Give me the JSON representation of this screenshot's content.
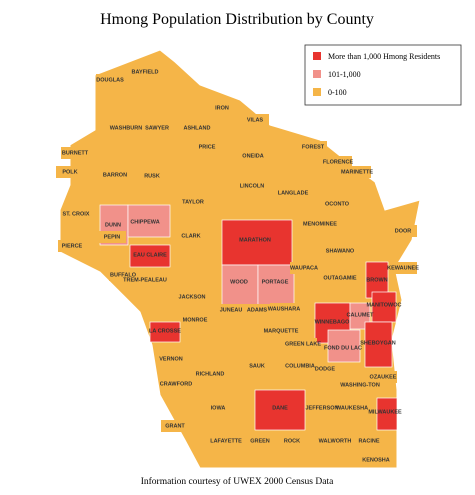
{
  "title": "Hmong Population Distribution by County",
  "legend": [
    {
      "label": "More than 1,000 Hmong Residents",
      "color": "#e8342f"
    },
    {
      "label": "101-1,000",
      "color": "#f1918a"
    },
    {
      "label": "0-100",
      "color": "#f5b548"
    }
  ],
  "counties": [
    {
      "name": "DOUGLAS",
      "color": "#f5b548"
    },
    {
      "name": "BAYFIELD",
      "color": "#f5b548"
    },
    {
      "name": "IRON",
      "color": "#f5b548"
    },
    {
      "name": "ASHLAND",
      "color": "#f5b548"
    },
    {
      "name": "VILAS",
      "color": "#f5b548"
    },
    {
      "name": "WASHBURN",
      "color": "#f5b548"
    },
    {
      "name": "SAWYER",
      "color": "#f5b548"
    },
    {
      "name": "BURNETT",
      "color": "#f5b548"
    },
    {
      "name": "PRICE",
      "color": "#f5b548"
    },
    {
      "name": "FOREST",
      "color": "#f5b548"
    },
    {
      "name": "POLK",
      "color": "#f5b548"
    },
    {
      "name": "BARRON",
      "color": "#f5b548"
    },
    {
      "name": "RUSK",
      "color": "#f5b548"
    },
    {
      "name": "ONEIDA",
      "color": "#f5b548"
    },
    {
      "name": "FLORENCE",
      "color": "#f5b548"
    },
    {
      "name": "MARINETTE",
      "color": "#f5b548"
    },
    {
      "name": "LINCOLN",
      "color": "#f5b548"
    },
    {
      "name": "LANGLADE",
      "color": "#f5b548"
    },
    {
      "name": "OCONTO",
      "color": "#f5b548"
    },
    {
      "name": "TAYLOR",
      "color": "#f5b548"
    },
    {
      "name": "ST. CROIX",
      "color": "#f5b548"
    },
    {
      "name": "DUNN",
      "color": "#f1918a"
    },
    {
      "name": "CHIPPEWA",
      "color": "#f1918a"
    },
    {
      "name": "MENOMINEE",
      "color": "#f5b548"
    },
    {
      "name": "PIERCE",
      "color": "#f5b548"
    },
    {
      "name": "EAU CLAIRE",
      "color": "#e8342f"
    },
    {
      "name": "CLARK",
      "color": "#f5b548"
    },
    {
      "name": "MARATHON",
      "color": "#e8342f"
    },
    {
      "name": "SHAWANO",
      "color": "#f5b548"
    },
    {
      "name": "DOOR",
      "color": "#f5b548"
    },
    {
      "name": "PEPIN",
      "color": "#f5b548"
    },
    {
      "name": "BUFFALO",
      "color": "#f5b548"
    },
    {
      "name": "TREM-PEALEAU",
      "color": "#f5b548"
    },
    {
      "name": "KEWAUNEE",
      "color": "#f5b548"
    },
    {
      "name": "BROWN",
      "color": "#e8342f"
    },
    {
      "name": "WOOD",
      "color": "#f1918a"
    },
    {
      "name": "PORTAGE",
      "color": "#f1918a"
    },
    {
      "name": "WAUPACA",
      "color": "#f5b548"
    },
    {
      "name": "OUTAGAMIE",
      "color": "#f5b548"
    },
    {
      "name": "JACKSON",
      "color": "#f5b548"
    },
    {
      "name": "MANITOWOC",
      "color": "#e8342f"
    },
    {
      "name": "MONROE",
      "color": "#f5b548"
    },
    {
      "name": "JUNEAU",
      "color": "#f5b548"
    },
    {
      "name": "ADAMS",
      "color": "#f5b548"
    },
    {
      "name": "WAUSHARA",
      "color": "#f5b548"
    },
    {
      "name": "WINNEBAGO",
      "color": "#e8342f"
    },
    {
      "name": "CALUMET",
      "color": "#f1918a"
    },
    {
      "name": "LA CROSSE",
      "color": "#e8342f"
    },
    {
      "name": "MARQUETTE",
      "color": "#f5b548"
    },
    {
      "name": "GREEN LAKE",
      "color": "#f5b548"
    },
    {
      "name": "FOND DU LAC",
      "color": "#f1918a"
    },
    {
      "name": "SHEBOYGAN",
      "color": "#e8342f"
    },
    {
      "name": "VERNON",
      "color": "#f5b548"
    },
    {
      "name": "RICHLAND",
      "color": "#f5b548"
    },
    {
      "name": "SAUK",
      "color": "#f5b548"
    },
    {
      "name": "COLUMBIA",
      "color": "#f5b548"
    },
    {
      "name": "DODGE",
      "color": "#f5b548"
    },
    {
      "name": "OZAUKEE",
      "color": "#f5b548"
    },
    {
      "name": "WASHING-TON",
      "color": "#f5b548"
    },
    {
      "name": "CRAWFORD",
      "color": "#f5b548"
    },
    {
      "name": "IOWA",
      "color": "#f5b548"
    },
    {
      "name": "DANE",
      "color": "#e8342f"
    },
    {
      "name": "JEFFERSON",
      "color": "#f5b548"
    },
    {
      "name": "WAUKESHA",
      "color": "#f5b548"
    },
    {
      "name": "MILWAUKEE",
      "color": "#e8342f"
    },
    {
      "name": "GRANT",
      "color": "#f5b548"
    },
    {
      "name": "LAFAYETTE",
      "color": "#f5b548"
    },
    {
      "name": "GREEN",
      "color": "#f5b548"
    },
    {
      "name": "ROCK",
      "color": "#f5b548"
    },
    {
      "name": "WALWORTH",
      "color": "#f5b548"
    },
    {
      "name": "RACINE",
      "color": "#f5b548"
    },
    {
      "name": "KENOSHA",
      "color": "#f5b548"
    }
  ],
  "footer": "Information courtesy of UWEX 2000 Census Data"
}
